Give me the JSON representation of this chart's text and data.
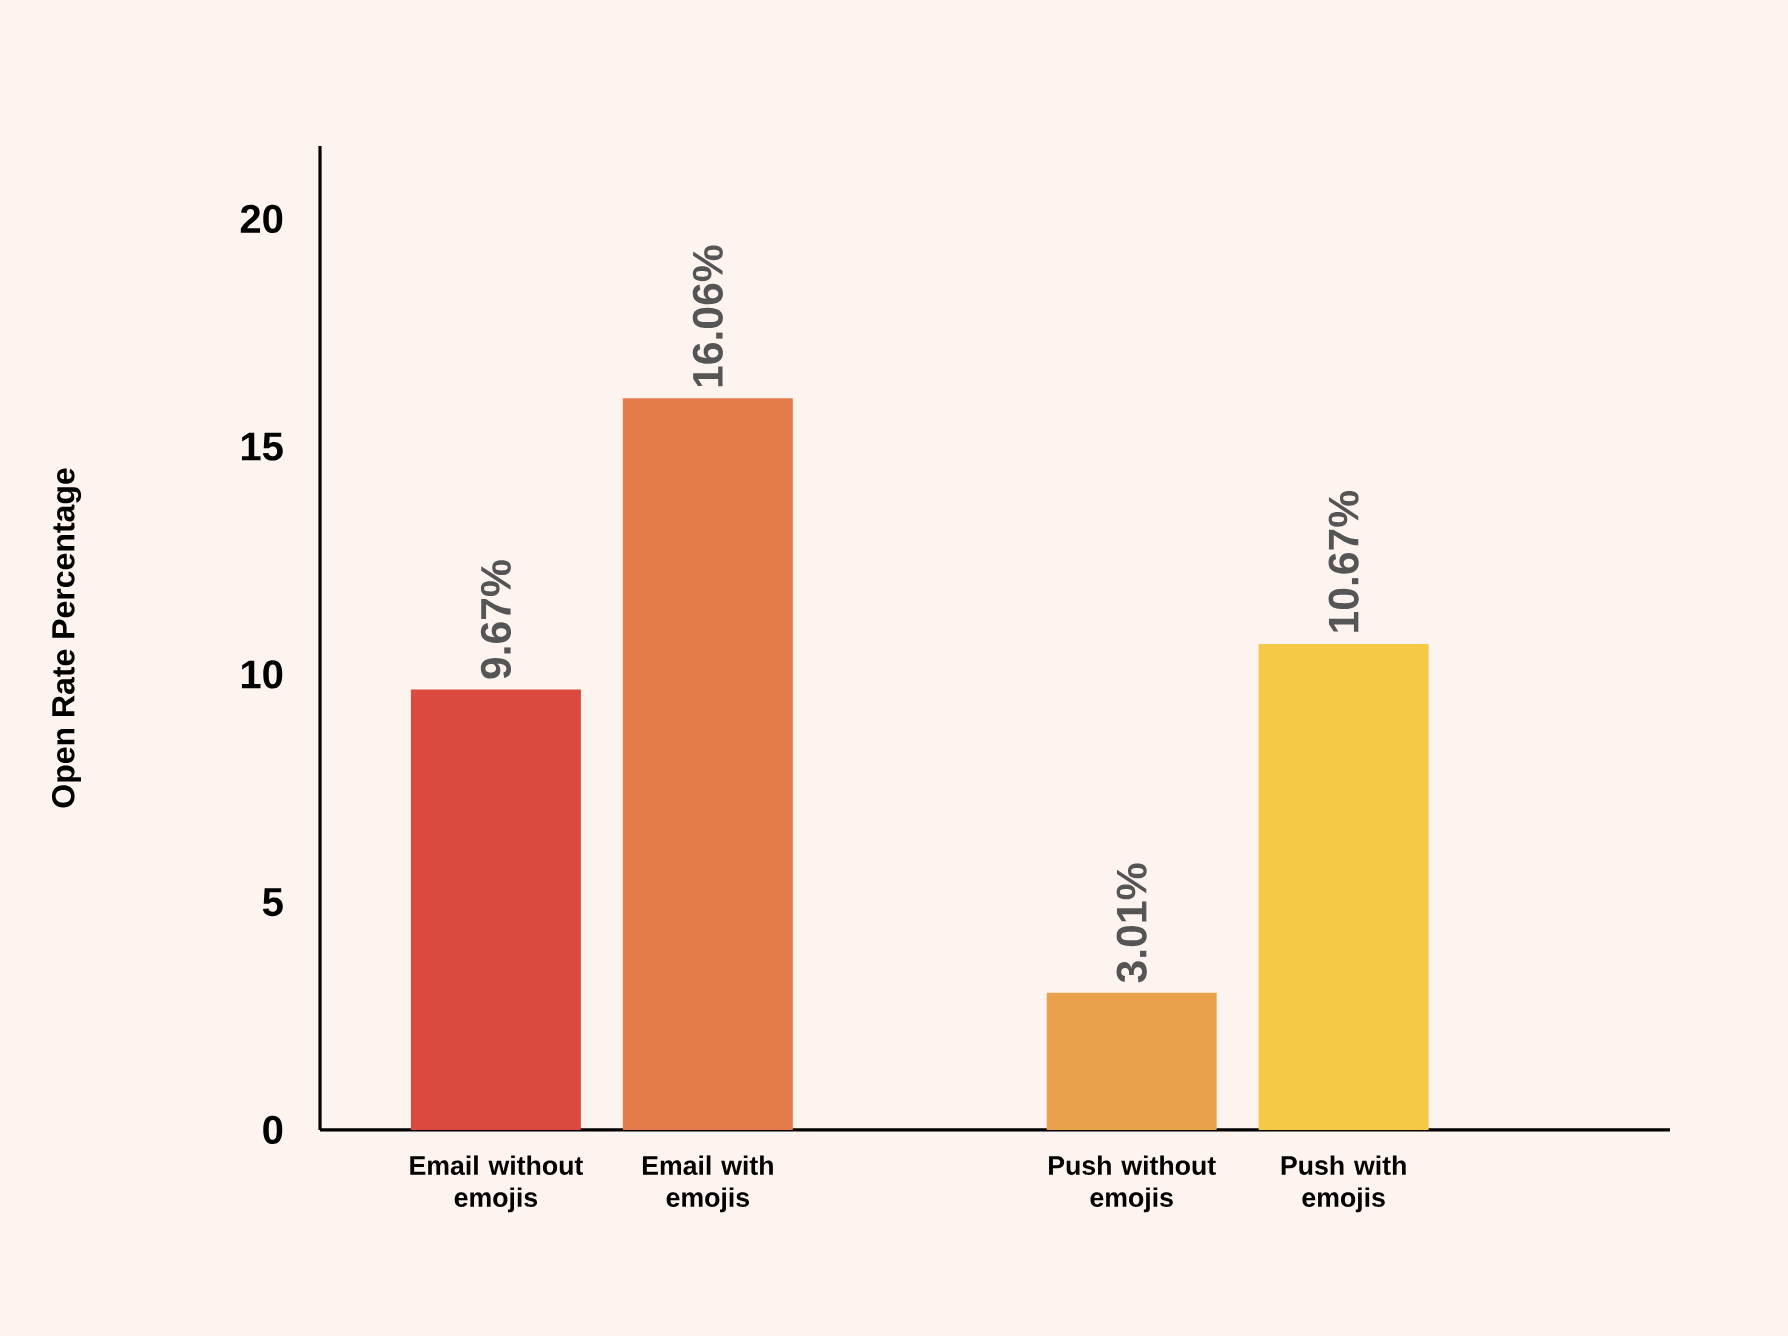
{
  "chart_data": {
    "type": "bar",
    "ylabel": "Open Rate Percentage",
    "categories": [
      "Email without emojis",
      "Email with emojis",
      null,
      "Push without emojis",
      "Push with emojis"
    ],
    "values": [
      9.67,
      16.06,
      null,
      3.01,
      10.67
    ],
    "colors": [
      "#da4a3f",
      "#e37b4b",
      "#ffffff",
      "#e9a24b",
      "#f5c946"
    ],
    "value_labels": [
      "9.67%",
      "16.06%",
      null,
      "3.01%",
      "10.67%"
    ],
    "ylim": [
      0,
      21.6
    ],
    "yticks": [
      0,
      5,
      10,
      15,
      20
    ]
  }
}
